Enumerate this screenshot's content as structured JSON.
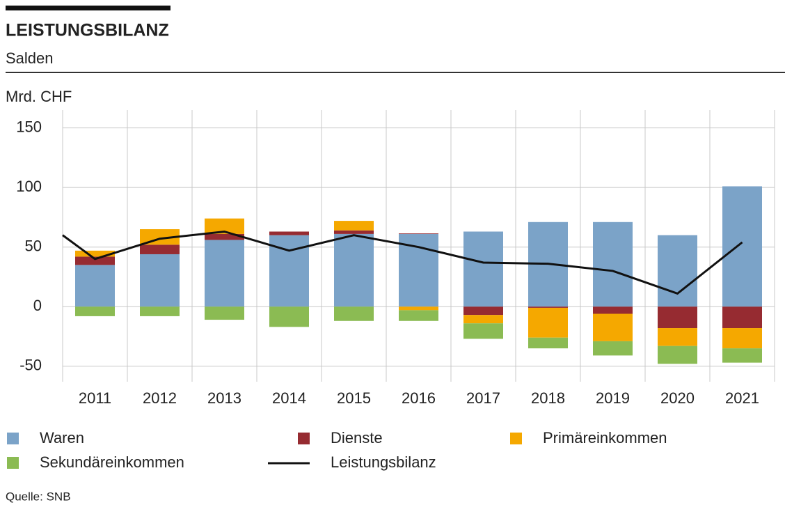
{
  "chart_data": {
    "type": "stacked-bar-line",
    "title": "LEISTUNGSBILANZ",
    "subtitle": "Salden",
    "y_label": "Mrd. CHF",
    "source": "Quelle: SNB",
    "categories": [
      "2011",
      "2012",
      "2013",
      "2014",
      "2015",
      "2016",
      "2017",
      "2018",
      "2019",
      "2020",
      "2021"
    ],
    "series": [
      {
        "name": "Waren",
        "color": "#7ba3c8",
        "values": [
          35,
          44,
          56,
          60,
          61,
          61,
          63,
          71,
          71,
          60,
          101
        ]
      },
      {
        "name": "Dienste",
        "color": "#962b31",
        "values": [
          7,
          8,
          5,
          3,
          3,
          0.5,
          -7,
          -1,
          -6,
          -18,
          -18
        ]
      },
      {
        "name": "Primäreinkommen",
        "color": "#f5a800",
        "values": [
          5,
          13,
          13,
          0,
          8,
          -3,
          -7,
          -25,
          -23,
          -15,
          -17
        ]
      },
      {
        "name": "Sekundäreinkommen",
        "color": "#8bbb53",
        "values": [
          -8,
          -8,
          -11,
          -17,
          -12,
          -9,
          -13,
          -9,
          -12,
          -15,
          -12
        ]
      },
      {
        "name": "Leistungsbilanz",
        "color": "#111111",
        "kind": "line",
        "x": [
          2010.5,
          2011,
          2012,
          2013,
          2014,
          2015,
          2016,
          2017,
          2018,
          2019,
          2020,
          2021
        ],
        "values": [
          60,
          40,
          57,
          63,
          47,
          60,
          50,
          37,
          36,
          30,
          11,
          54
        ]
      }
    ],
    "ylim": [
      -63,
      165
    ],
    "yticks": [
      -50,
      0,
      50,
      100,
      150
    ],
    "grid": true
  }
}
